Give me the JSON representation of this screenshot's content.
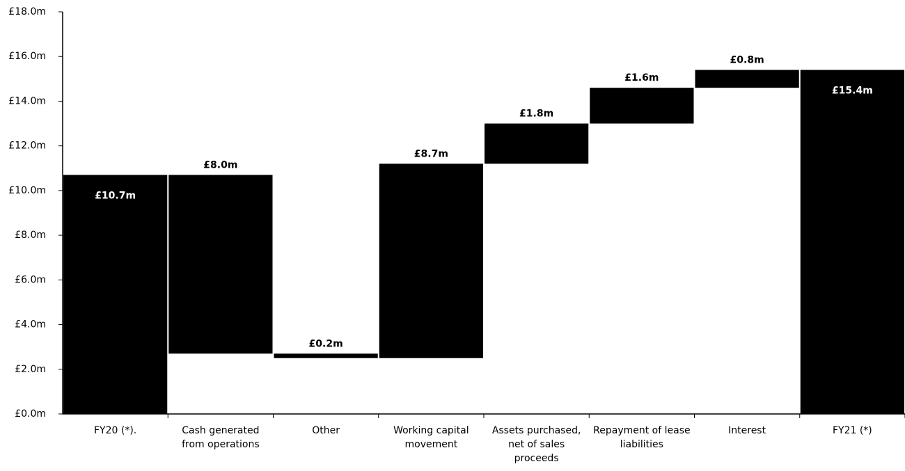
{
  "chart_data": {
    "type": "waterfall",
    "categories": [
      "FY20 (*).",
      "Cash generated from operations",
      "Other",
      "Working capital movement",
      "Assets purchased, net of sales proceeds",
      "Repayment of lease liabilities",
      "Interest",
      "FY21 (*)"
    ],
    "measures": [
      "total",
      "relative",
      "relative",
      "relative",
      "relative",
      "relative",
      "relative",
      "total"
    ],
    "values": [
      10.7,
      -8.0,
      -0.2,
      8.7,
      1.8,
      1.6,
      0.8,
      15.4
    ],
    "value_labels": [
      "£10.7m",
      "£8.0m",
      "£0.2m",
      "£8.7m",
      "£1.8m",
      "£1.6m",
      "£0.8m",
      "£15.4m"
    ],
    "color": "#000000",
    "ylim": [
      0,
      18
    ],
    "yticks": [
      {
        "value": 0,
        "label": "£0.0m"
      },
      {
        "value": 2,
        "label": "£2.0m"
      },
      {
        "value": 4,
        "label": "£4.0m"
      },
      {
        "value": 6,
        "label": "£6.0m"
      },
      {
        "value": 8,
        "label": "£8.0m"
      },
      {
        "value": 10,
        "label": "£10.0m"
      },
      {
        "value": 12,
        "label": "£12.0m"
      },
      {
        "value": 14,
        "label": "£14.0m"
      },
      {
        "value": 16,
        "label": "£16.0m"
      },
      {
        "value": 18,
        "label": "£18.0m"
      }
    ]
  }
}
